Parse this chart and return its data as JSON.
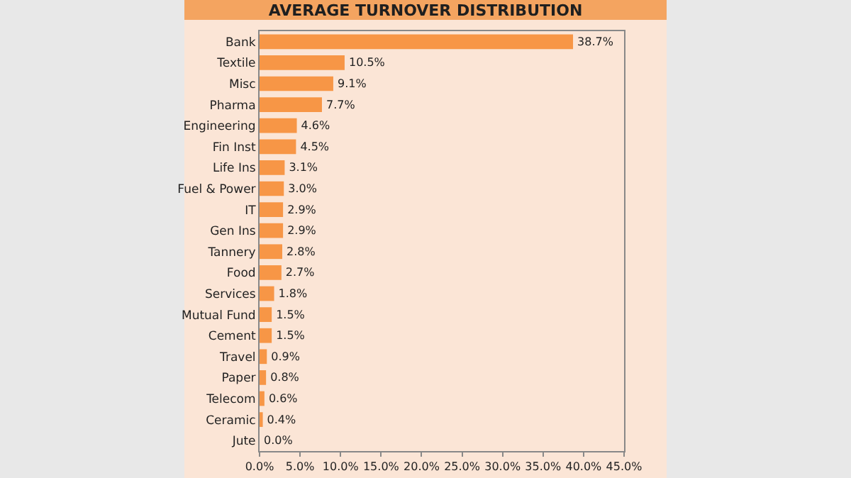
{
  "chart_data": {
    "type": "bar",
    "orientation": "horizontal",
    "title": "AVERAGE TURNOVER DISTRIBUTION",
    "categories": [
      "Bank",
      "Textile",
      "Misc",
      "Pharma",
      "Engineering",
      "Fin Inst",
      "Life Ins",
      "Fuel & Power",
      "IT",
      "Gen Ins",
      "Tannery",
      "Food",
      "Services",
      "Mutual Fund",
      "Cement",
      "Travel",
      "Paper",
      "Telecom",
      "Ceramic",
      "Jute"
    ],
    "values": [
      38.7,
      10.5,
      9.1,
      7.7,
      4.6,
      4.5,
      3.1,
      3.0,
      2.9,
      2.9,
      2.8,
      2.7,
      1.8,
      1.5,
      1.5,
      0.9,
      0.8,
      0.6,
      0.4,
      0.0
    ],
    "value_labels": [
      "38.7%",
      "10.5%",
      "9.1%",
      "7.7%",
      "4.6%",
      "4.5%",
      "3.1%",
      "3.0%",
      "2.9%",
      "2.9%",
      "2.8%",
      "2.7%",
      "1.8%",
      "1.5%",
      "1.5%",
      "0.9%",
      "0.8%",
      "0.6%",
      "0.4%",
      "0.0%"
    ],
    "color": "#f79646",
    "xlim": [
      0,
      45
    ],
    "xticks": [
      {
        "value": 0,
        "label": "0.0%"
      },
      {
        "value": 5,
        "label": "5.0%"
      },
      {
        "value": 10,
        "label": "10.0%"
      },
      {
        "value": 15,
        "label": "15.0%"
      },
      {
        "value": 20,
        "label": "20.0%"
      },
      {
        "value": 25,
        "label": "25.0%"
      },
      {
        "value": 30,
        "label": "30.0%"
      },
      {
        "value": 35,
        "label": "35.0%"
      },
      {
        "value": 40,
        "label": "40.0%"
      },
      {
        "value": 45,
        "label": "45.0%"
      }
    ],
    "grid": false,
    "legend": false
  }
}
